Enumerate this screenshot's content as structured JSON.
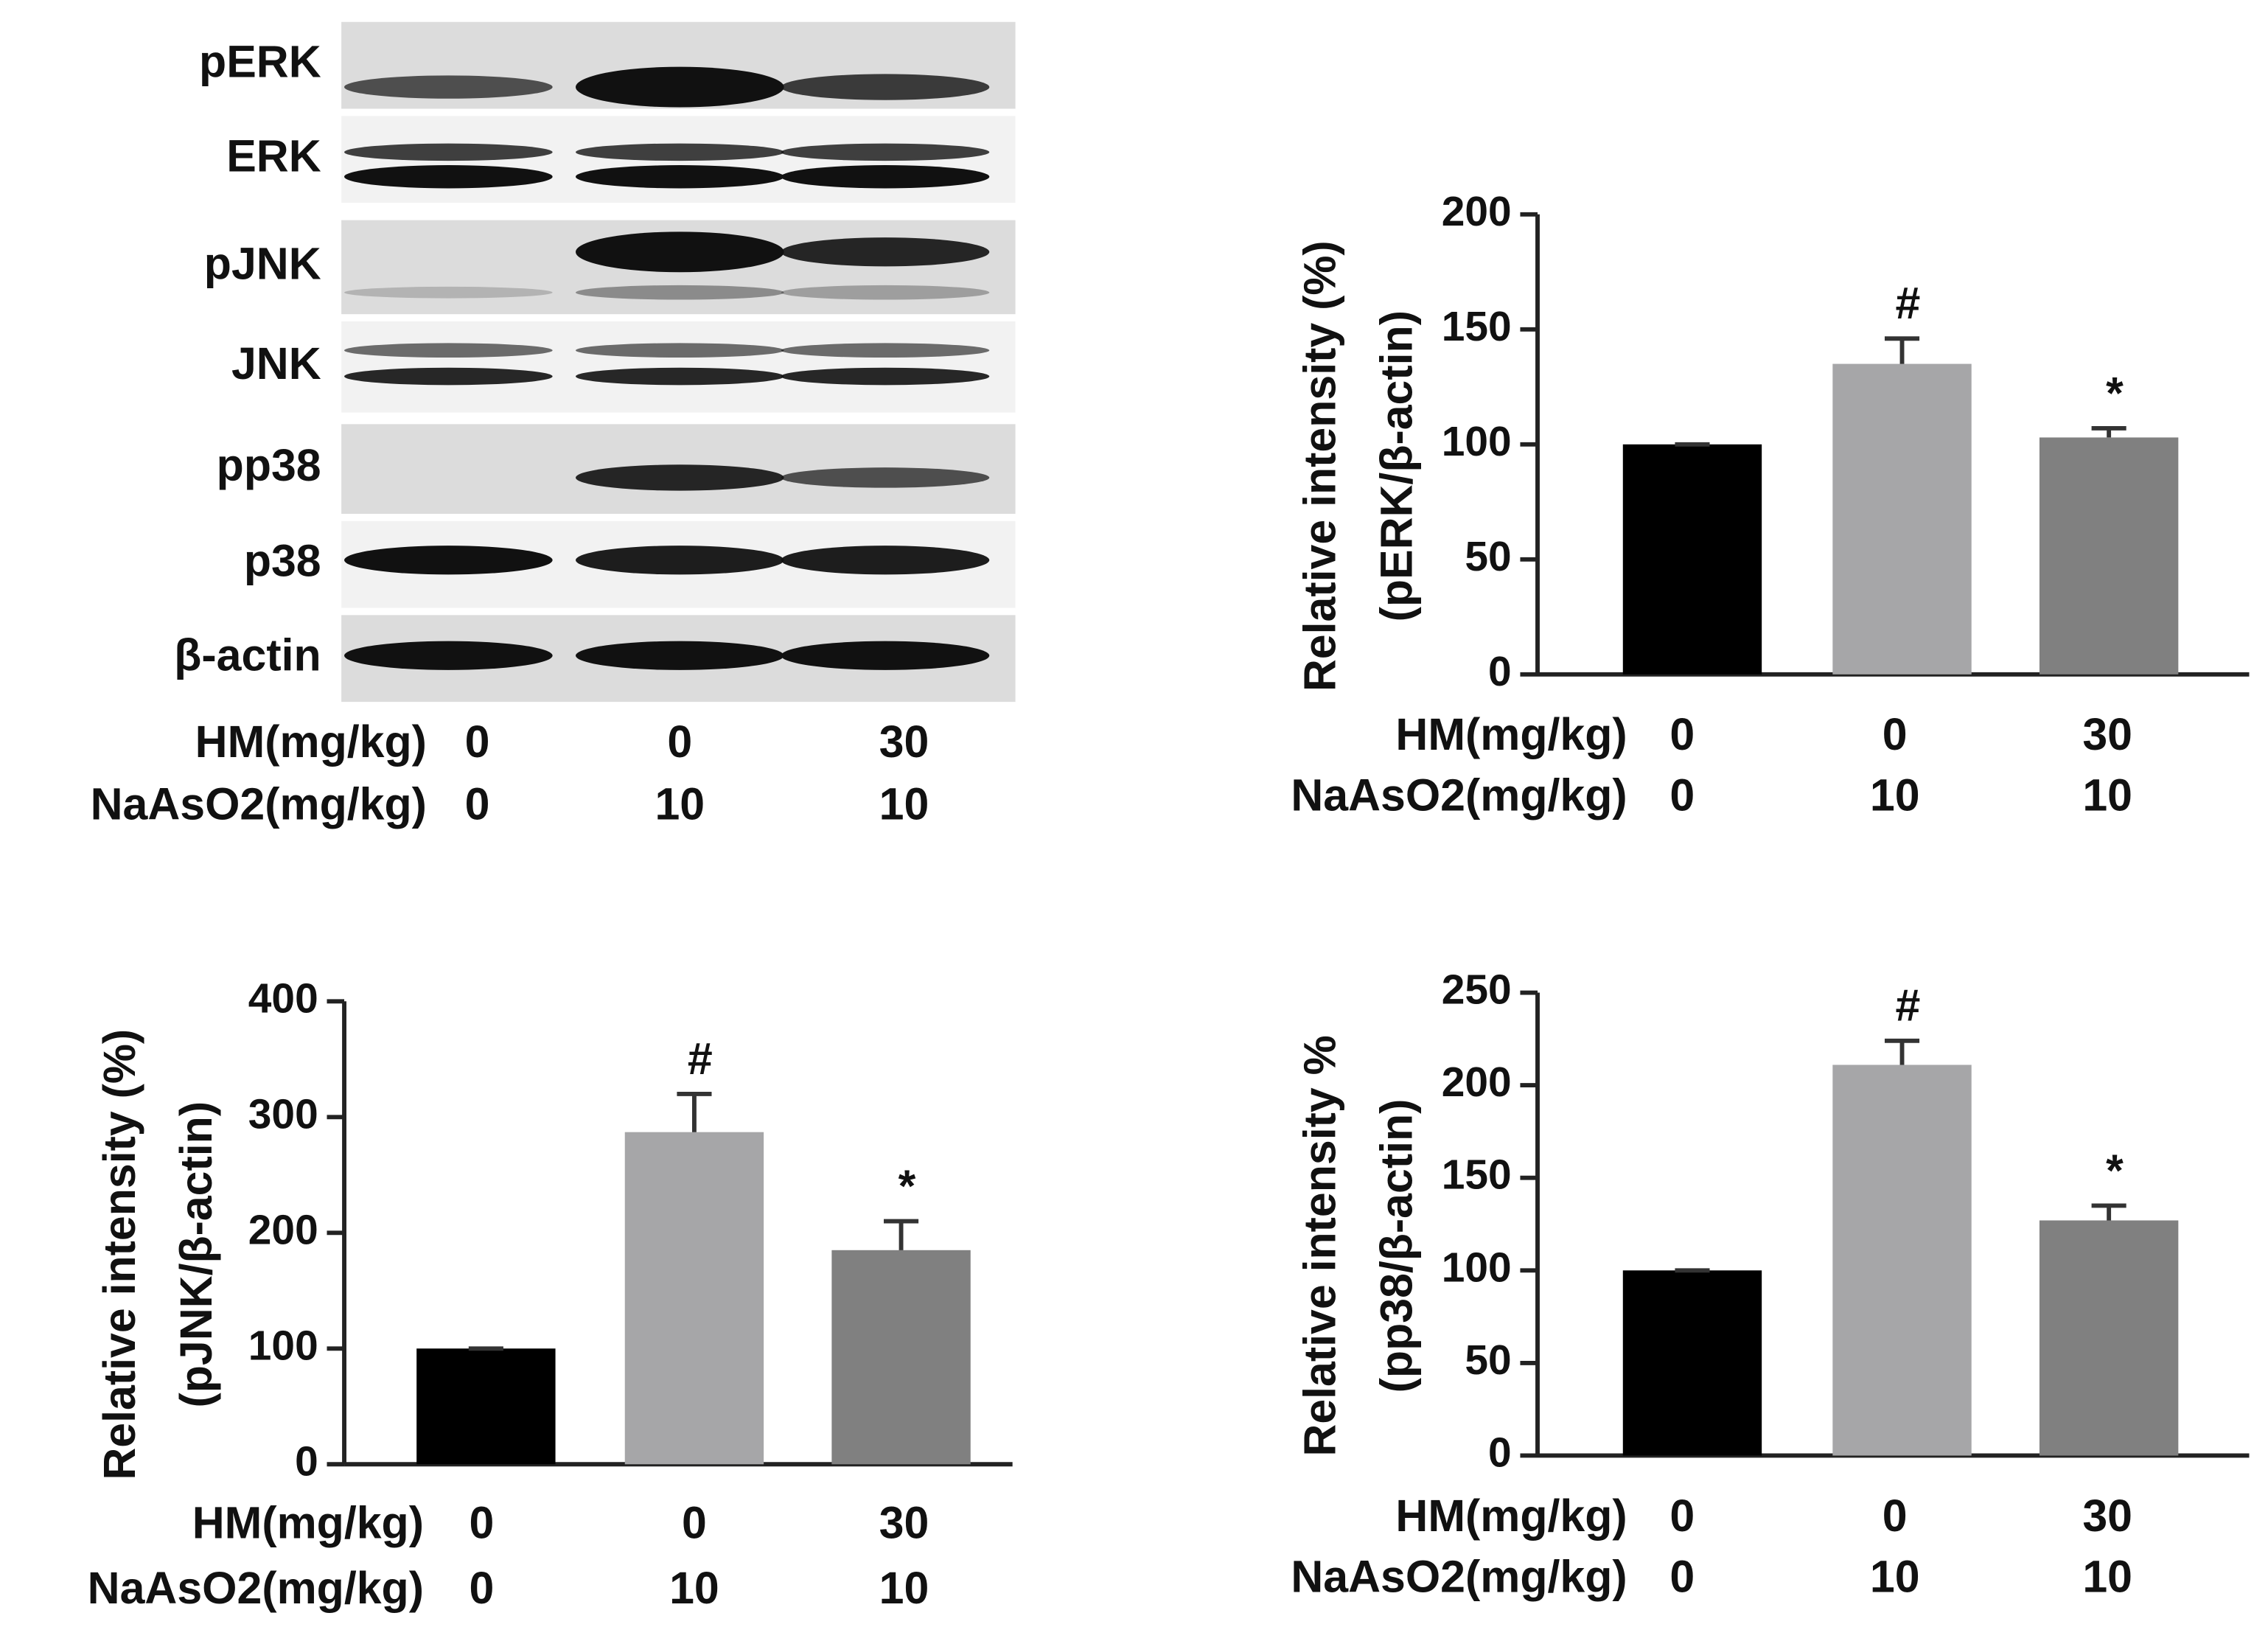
{
  "blot": {
    "bands": [
      "pERK",
      "ERK",
      "pJNK",
      "JNK",
      "pp38",
      "p38",
      "β-actin"
    ],
    "category_rows": [
      {
        "label": "HM(mg/kg)",
        "values": [
          "0",
          "0",
          "30"
        ]
      },
      {
        "label": "NaAsO2(mg/kg)",
        "values": [
          "0",
          "10",
          "10"
        ]
      }
    ]
  },
  "chart_data": [
    {
      "type": "bar",
      "ylabel": [
        "Relative intensity (%)",
        "(pERK/β-actin)"
      ],
      "category_rows": [
        {
          "label": "HM(mg/kg)",
          "values": [
            "0",
            "0",
            "30"
          ]
        },
        {
          "label": "NaAsO2(mg/kg)",
          "values": [
            "0",
            "10",
            "10"
          ]
        }
      ],
      "values": [
        100,
        135,
        103
      ],
      "errors": [
        0,
        11,
        4
      ],
      "annotations": [
        null,
        "#",
        "*"
      ],
      "colors": [
        "#000000",
        "#a6a6a8",
        "#808080"
      ],
      "ylim": [
        0,
        200
      ],
      "yticks": [
        0,
        50,
        100,
        150,
        200
      ]
    },
    {
      "type": "bar",
      "ylabel": [
        "Relative intensity (%)",
        "(pJNK/β-actin)"
      ],
      "category_rows": [
        {
          "label": "HM(mg/kg)",
          "values": [
            "0",
            "0",
            "30"
          ]
        },
        {
          "label": "NaAsO2(mg/kg)",
          "values": [
            "0",
            "10",
            "10"
          ]
        }
      ],
      "values": [
        100,
        287,
        185
      ],
      "errors": [
        0,
        33,
        25
      ],
      "annotations": [
        null,
        "#",
        "*"
      ],
      "colors": [
        "#000000",
        "#a6a6a8",
        "#808080"
      ],
      "ylim": [
        0,
        400
      ],
      "yticks": [
        0,
        100,
        200,
        300,
        400
      ]
    },
    {
      "type": "bar",
      "ylabel": [
        "Relative intensity %",
        "(pp38/β-actin)"
      ],
      "category_rows": [
        {
          "label": "HM(mg/kg)",
          "values": [
            "0",
            "0",
            "30"
          ]
        },
        {
          "label": "NaAsO2(mg/kg)",
          "values": [
            "0",
            "10",
            "10"
          ]
        }
      ],
      "values": [
        100,
        211,
        127
      ],
      "errors": [
        0,
        13,
        8
      ],
      "annotations": [
        null,
        "#",
        "*"
      ],
      "colors": [
        "#000000",
        "#a6a6a8",
        "#808080"
      ],
      "ylim": [
        0,
        250
      ],
      "yticks": [
        0,
        50,
        100,
        150,
        200,
        250
      ]
    }
  ]
}
